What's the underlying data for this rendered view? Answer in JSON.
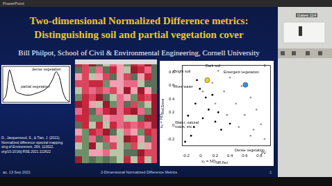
{
  "window": {
    "title": "PowerPoint",
    "video_label": "Gates 114"
  },
  "slide": {
    "title_lines": [
      "Two-dimensional Normalized Difference metrics:",
      "Distinguishing soil and partial vegetation cover"
    ],
    "author": "Bill Philpot, School of Civil & Environmental Engineering, Cornell University",
    "citation_lines": [
      "D., Jacquemoud, S., & Tian, J. (2021).",
      "Normalized difference spectral mapping.",
      "sing of Environment, 264, 112622.",
      "org/10.1016/j.RSE.2021.112622"
    ],
    "footer": {
      "left": "ac, 13 Sep 2021",
      "center": "2-Dimensional Normalized Difference Metrics",
      "page": "1"
    }
  },
  "chart_data": [
    {
      "type": "line",
      "annotations": [
        "dense vegetation",
        "partial vegetation"
      ],
      "x": [
        0,
        1,
        2,
        3,
        4,
        5,
        6,
        7,
        8,
        9,
        10,
        11,
        12,
        13,
        14,
        15,
        16,
        17,
        18,
        19,
        20
      ],
      "values": [
        5,
        20,
        90,
        60,
        30,
        25,
        22,
        20,
        20,
        22,
        25,
        28,
        32,
        38,
        48,
        65,
        85,
        70,
        30,
        8,
        2
      ],
      "color": "#000000",
      "xlim": [
        0,
        20
      ],
      "ylim": [
        0,
        100
      ],
      "tick_labels": false,
      "grid": false
    },
    {
      "type": "scatter",
      "x_label": {
        "main": "x₁ = ND",
        "sub": "NIR,Red"
      },
      "y_label": {
        "main": "x₂ = ND",
        "sub": "Red,Green"
      },
      "annotations": [
        "Bright soil",
        "Dark soil",
        "Emergent vegetation",
        "River water",
        "Water, natural roads, etc.",
        "Dense vegetation",
        "I",
        "IV"
      ],
      "series": [
        {
          "color": "#9a9a9a",
          "marker": "dot",
          "x": [
            0.24,
            0.4,
            0.56,
            0.68,
            0.76,
            0.82,
            0.87,
            0.16,
            0.32,
            0.48,
            0.6,
            0.72,
            0.03,
            0.2,
            0.36,
            0.52,
            0.68
          ],
          "values": [
            0.82,
            0.72,
            0.59,
            0.42,
            0.24,
            0.02,
            -0.2,
            0.64,
            0.51,
            0.33,
            0.16,
            -0.06,
            0.51,
            0.33,
            0.16,
            -0.02,
            -0.15
          ]
        },
        {
          "color": "#000000",
          "marker": "dot",
          "x": [
            -0.05,
            -0.01,
            0.07,
            0.11,
            0.03,
            -0.09,
            0.2,
            0.28,
            -0.13,
            -0.17,
            -0.07,
            0.16,
            0.4,
            -0.21,
            0.24
          ],
          "values": [
            0.68,
            0.55,
            0.42,
            0.24,
            0.11,
            -0.02,
            0.06,
            -0.06,
            -0.15,
            0.15,
            0.33,
            0.46,
            0.03,
            -0.24,
            0.2
          ]
        },
        {
          "color": "#f2d21b",
          "marker": "circle",
          "x": [
            0.09
          ],
          "values": [
            0.68
          ]
        },
        {
          "color": "#3a8fe0",
          "marker": "circle",
          "x": [
            0.61
          ],
          "values": [
            0.61
          ]
        }
      ],
      "xlim": [
        -0.25,
        0.95
      ],
      "xticks": [
        -0.2,
        0,
        0.2,
        0.4,
        0.6,
        0.8
      ],
      "ylim": [
        -0.3,
        0.9
      ],
      "yticks": [
        -0.2,
        0,
        0.2,
        0.4,
        0.6,
        0.8
      ],
      "grid": false
    }
  ]
}
